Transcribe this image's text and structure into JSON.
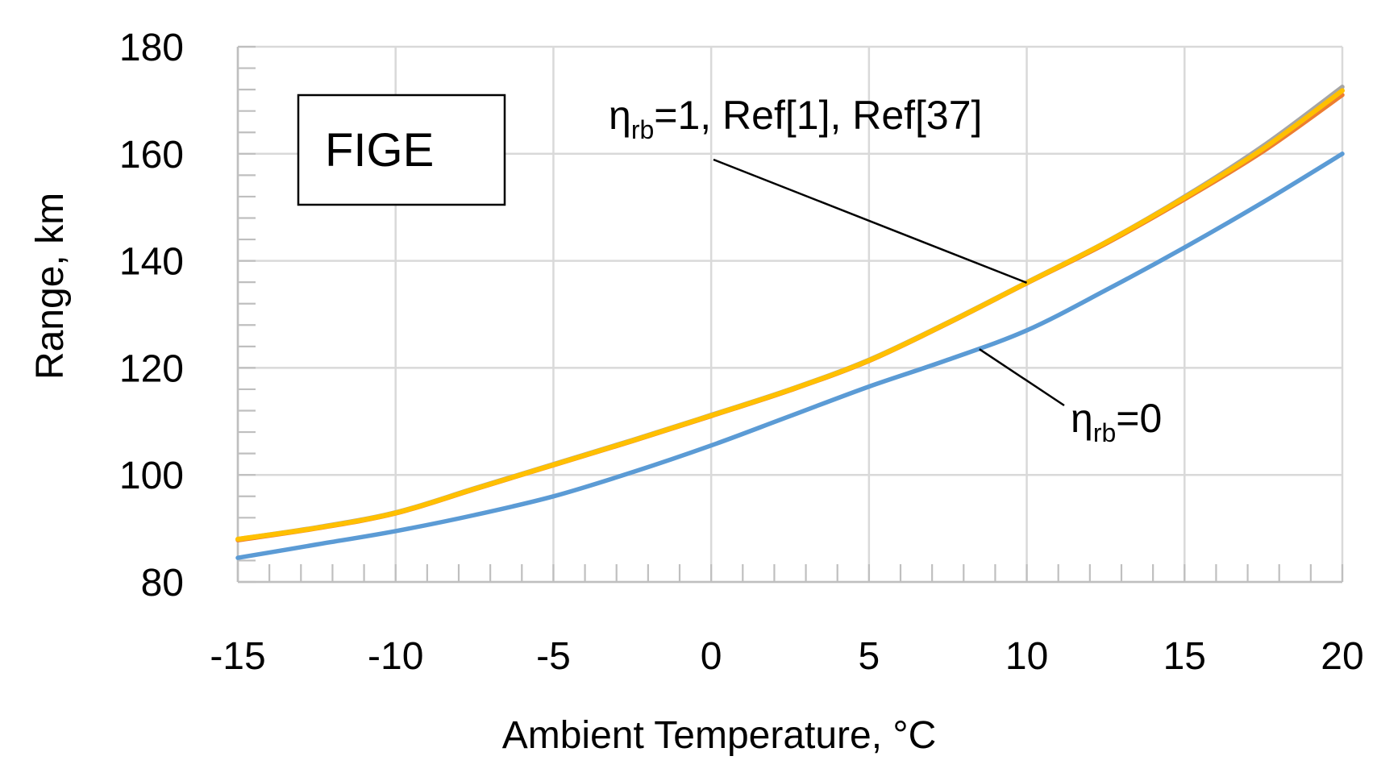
{
  "chart_data": {
    "type": "line",
    "title": "",
    "xlabel": "Ambient Temperature, °C",
    "ylabel": "Range, km",
    "xlim": [
      -15,
      20
    ],
    "ylim": [
      80,
      180
    ],
    "x_ticks": [
      -15,
      -10,
      -5,
      0,
      5,
      10,
      15,
      20
    ],
    "y_ticks": [
      80,
      100,
      120,
      140,
      160,
      180
    ],
    "x_tick_labels": [
      "-15",
      "-10",
      "-5",
      "0",
      "5",
      "10",
      "15",
      "20"
    ],
    "y_tick_labels": [
      "80",
      "100",
      "120",
      "140",
      "160",
      "180"
    ],
    "x_minor_step": 1,
    "y_minor_step": 4,
    "grid": true,
    "box_label": "FIGE",
    "series": [
      {
        "name": "ηrb=0",
        "color": "#5B9BD5",
        "x": [
          -15,
          -12.5,
          -10,
          -7.5,
          -5,
          -2.5,
          0,
          2.5,
          5,
          7.5,
          10,
          12.5,
          15,
          17.5,
          20
        ],
        "values": [
          84.5,
          87,
          89.5,
          92.5,
          96,
          100.5,
          105.5,
          111,
          116.5,
          121.5,
          127,
          134.5,
          142.5,
          151,
          160
        ]
      },
      {
        "name": "Ref[1]",
        "color": "#A5A5A5",
        "x": [
          -15,
          -12.5,
          -10,
          -7.5,
          -5,
          -2.5,
          0,
          2.5,
          5,
          7.5,
          10,
          12.5,
          15,
          17.5,
          20
        ],
        "values": [
          88,
          90.2,
          93,
          97.5,
          102,
          106.5,
          111.2,
          116,
          121.5,
          128.5,
          136,
          143.5,
          152,
          161.5,
          172.5
        ]
      },
      {
        "name": "Ref[37]",
        "color": "#ED7D31",
        "x": [
          -15,
          -12.5,
          -10,
          -7.5,
          -5,
          -2.5,
          0,
          2.5,
          5,
          7.5,
          10,
          12.5,
          15,
          17.5,
          20
        ],
        "values": [
          87.8,
          90,
          92.8,
          97.3,
          101.8,
          106.3,
          111,
          115.8,
          121.3,
          128.3,
          135.8,
          143.2,
          151.5,
          160.5,
          171
        ]
      },
      {
        "name": "ηrb=1",
        "color": "#FFC000",
        "x": [
          -15,
          -12.5,
          -10,
          -7.5,
          -5,
          -2.5,
          0,
          2.5,
          5,
          7.5,
          10,
          12.5,
          15,
          17.5,
          20
        ],
        "values": [
          88,
          90.1,
          92.9,
          97.4,
          101.9,
          106.4,
          111.1,
          115.9,
          121.4,
          128.4,
          135.9,
          143.4,
          151.8,
          161,
          171.8
        ]
      }
    ],
    "annotations": [
      {
        "id": "top",
        "parts": [
          {
            "text": "η",
            "sub": false
          },
          {
            "text": "rb",
            "sub": true
          },
          {
            "text": "=1, Ref[1], Ref[37]",
            "sub": false
          }
        ],
        "points_to": {
          "x": 10,
          "y": 135.9
        }
      },
      {
        "id": "bottom",
        "parts": [
          {
            "text": "η",
            "sub": false
          },
          {
            "text": "rb",
            "sub": true
          },
          {
            "text": "=0",
            "sub": false
          }
        ],
        "points_to": {
          "x": 8.5,
          "y": 123.5
        }
      }
    ]
  }
}
